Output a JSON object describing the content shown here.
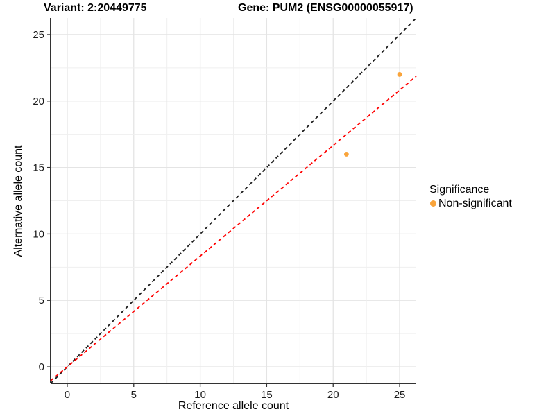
{
  "chart_data": {
    "type": "scatter",
    "titles": {
      "left": "Variant: 2:20449775",
      "right": "Gene: PUM2 (ENSG00000055917)"
    },
    "xlabel": "Reference allele count",
    "ylabel": "Alternative allele count",
    "xlim": [
      -1.25,
      26.25
    ],
    "ylim": [
      -1.25,
      26.25
    ],
    "x_ticks": [
      0,
      5,
      10,
      15,
      20,
      25
    ],
    "y_ticks": [
      0,
      5,
      10,
      15,
      20,
      25
    ],
    "minor_gridline_step": 2.5,
    "grid": true,
    "series": [
      {
        "name": "Non-significant",
        "color": "#F9A43B",
        "points": [
          {
            "x": 21,
            "y": 16
          },
          {
            "x": 25,
            "y": 22
          }
        ]
      }
    ],
    "reference_lines": [
      {
        "name": "identity-line",
        "slope": 1,
        "intercept": 0,
        "color": "#1a1a1a",
        "style": "dashed"
      },
      {
        "name": "regression-line",
        "slope": 0.833,
        "intercept": 0,
        "color": "#ff0000",
        "style": "dashed"
      }
    ],
    "legend": {
      "title": "Significance",
      "position": "right",
      "items": [
        {
          "label": "Non-significant",
          "color": "#F9A43B"
        }
      ]
    }
  }
}
